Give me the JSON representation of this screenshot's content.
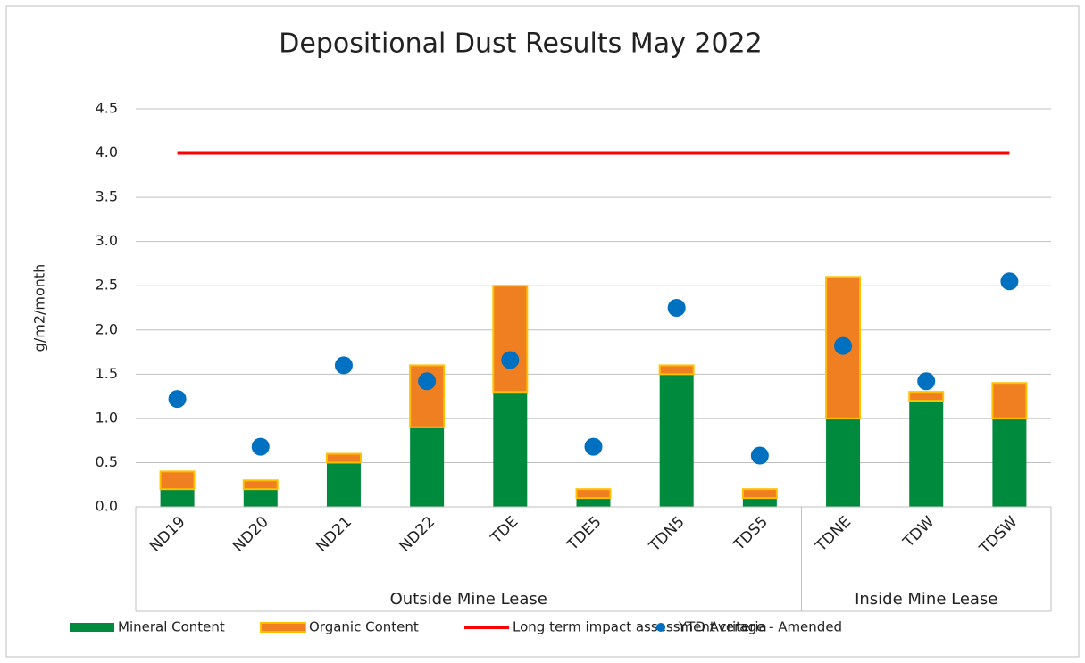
{
  "chart_data": {
    "type": "bar",
    "stacked": true,
    "title": "Depositional Dust Results May 2022",
    "ylabel": "g/m2/month",
    "categories": [
      "ND19",
      "ND20",
      "ND21",
      "ND22",
      "TDE",
      "TDE5",
      "TDN5",
      "TDS5",
      "TDNE",
      "TDW",
      "TDSW"
    ],
    "groups": [
      {
        "name": "Outside Mine Lease",
        "size": 8
      },
      {
        "name": "Inside Mine Lease",
        "size": 3
      }
    ],
    "series": [
      {
        "name": "Mineral Content",
        "type": "bar",
        "color": "#008a3e",
        "values": [
          0.2,
          0.2,
          0.5,
          0.9,
          1.3,
          0.1,
          1.5,
          0.1,
          1.0,
          1.2,
          1.0
        ]
      },
      {
        "name": "Organic Content",
        "type": "bar",
        "color": "#f07f22",
        "edge": "#ffc000",
        "values": [
          0.2,
          0.1,
          0.1,
          0.7,
          1.2,
          0.1,
          0.1,
          0.1,
          1.6,
          0.1,
          0.4
        ]
      },
      {
        "name": "Long term impact assessment criteria",
        "type": "line",
        "color": "#ff0000",
        "values": [
          4.0,
          4.0,
          4.0,
          4.0,
          4.0,
          4.0,
          4.0,
          4.0,
          4.0,
          4.0,
          4.0
        ]
      },
      {
        "name": "YTD Average - Amended",
        "type": "scatter",
        "color": "#0070c0",
        "values": [
          1.22,
          0.68,
          1.6,
          1.42,
          1.66,
          0.68,
          2.25,
          0.58,
          1.82,
          1.42,
          2.55
        ]
      }
    ],
    "ylim": [
      0,
      4.5
    ],
    "yticks": [
      {
        "value": 0,
        "label": "0.0"
      },
      0.5,
      {
        "value": 1,
        "label": "1.0"
      },
      1.5,
      {
        "value": 2,
        "label": "2.0"
      },
      2.5,
      {
        "value": 3,
        "label": "3.0"
      },
      3.5,
      {
        "value": 4,
        "label": "4.0"
      },
      4.5
    ],
    "grid": true,
    "legend": "bottom"
  }
}
